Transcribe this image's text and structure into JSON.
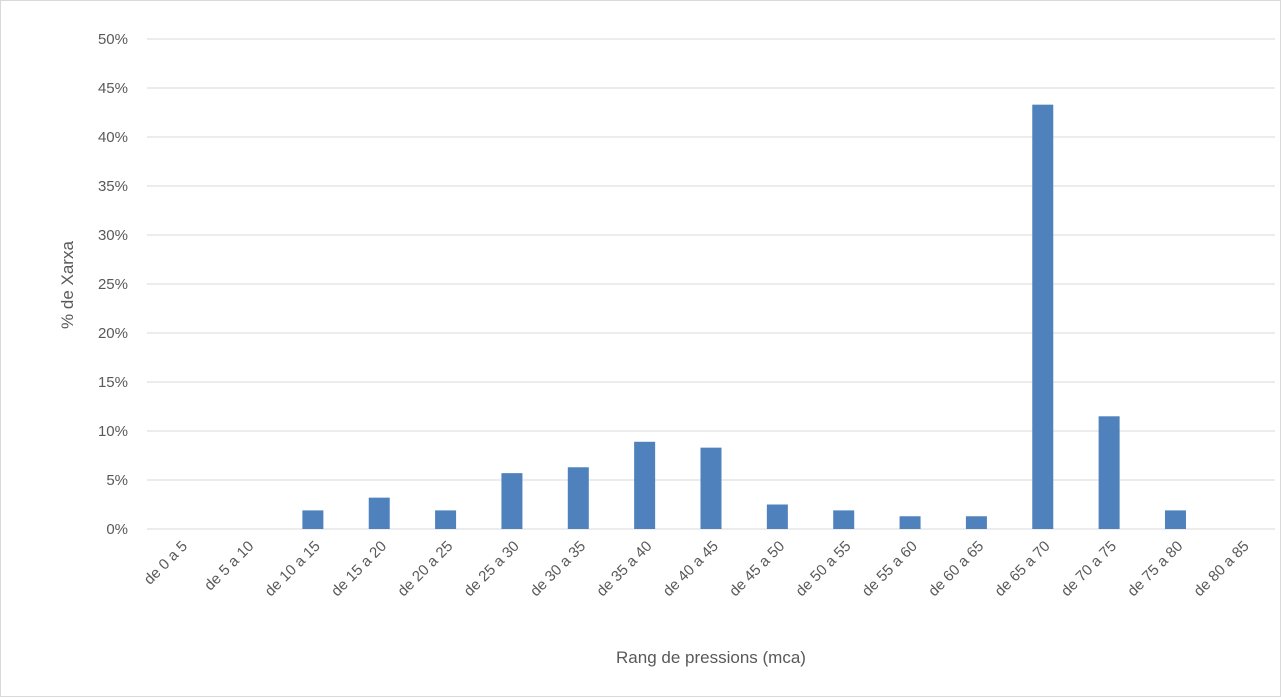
{
  "chart_data": {
    "type": "bar",
    "categories": [
      "de 0 a 5",
      "de 5 a 10",
      "de 10 a 15",
      "de 15 a 20",
      "de 20 a 25",
      "de 25 a 30",
      "de 30 a 35",
      "de 35 a 40",
      "de 40 a 45",
      "de 45 a 50",
      "de 50 a 55",
      "de 55 a 60",
      "de 60 a 65",
      "de 65 a 70",
      "de 70 a 75",
      "de 75 a 80",
      "de 80 a 85"
    ],
    "values": [
      0,
      0,
      1.9,
      3.2,
      1.9,
      5.7,
      6.3,
      8.9,
      8.3,
      2.5,
      1.9,
      1.3,
      1.3,
      43.3,
      11.5,
      1.9,
      0
    ],
    "y_ticks": [
      "0%",
      "5%",
      "10%",
      "15%",
      "20%",
      "25%",
      "30%",
      "35%",
      "40%",
      "45%",
      "50%"
    ],
    "ylim": [
      0,
      50
    ],
    "xlabel": "Rang de pressions (mca)",
    "ylabel": "% de Xarxa",
    "grid": true,
    "colors": {
      "bar": "#4f81bd",
      "grid": "#d9d9d9",
      "text": "#595959"
    }
  }
}
